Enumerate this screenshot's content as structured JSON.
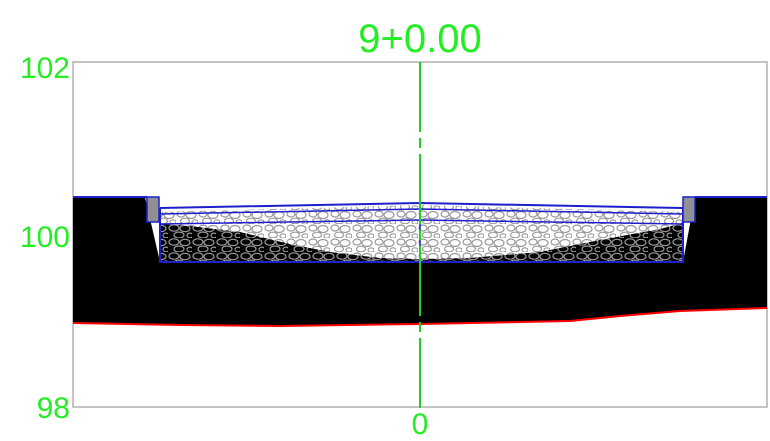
{
  "station": {
    "label": "9+0.00"
  },
  "axes": {
    "elevation_ticks": [
      "102",
      "100",
      "98"
    ],
    "offset_ticks": [
      "0"
    ],
    "elevation_range": [
      98,
      102
    ]
  },
  "colors": {
    "background": "#ffffff",
    "frame": "#b0b0b0",
    "labels": "#22ee22",
    "centerline": "#22cc22",
    "earth_fill": "#000000",
    "subgrade_line": "#ff0000",
    "pavement_outline": "#1f1fcc",
    "aggregate_stroke": "#9a9a9a",
    "curb_fill": "#909090"
  },
  "layers": {
    "surface_course": "gravel-aggregate-top",
    "base_course": "gravel-aggregate-dark",
    "curbs": "gutter-curb-left-right",
    "subgrade": "earth-black"
  }
}
